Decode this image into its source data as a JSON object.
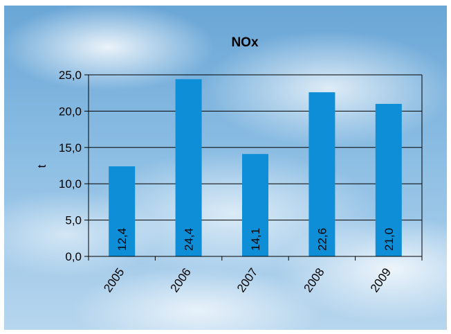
{
  "chart_data": {
    "type": "bar",
    "title": "NOx",
    "xlabel": "",
    "ylabel": "t",
    "categories": [
      "2005",
      "2006",
      "2007",
      "2008",
      "2009"
    ],
    "values": [
      12.4,
      24.4,
      14.1,
      22.6,
      21.0
    ],
    "value_labels": [
      "12,4",
      "24,4",
      "14,1",
      "22,6",
      "21,0"
    ],
    "yticks": [
      "0,0",
      "5,0",
      "10,0",
      "15,0",
      "20,0",
      "25,0"
    ],
    "ylim": [
      0,
      25
    ],
    "grid": true,
    "legend": "none",
    "colors": {
      "bar": "#0e8ed6",
      "grid": "#000000",
      "background": "sky"
    }
  }
}
